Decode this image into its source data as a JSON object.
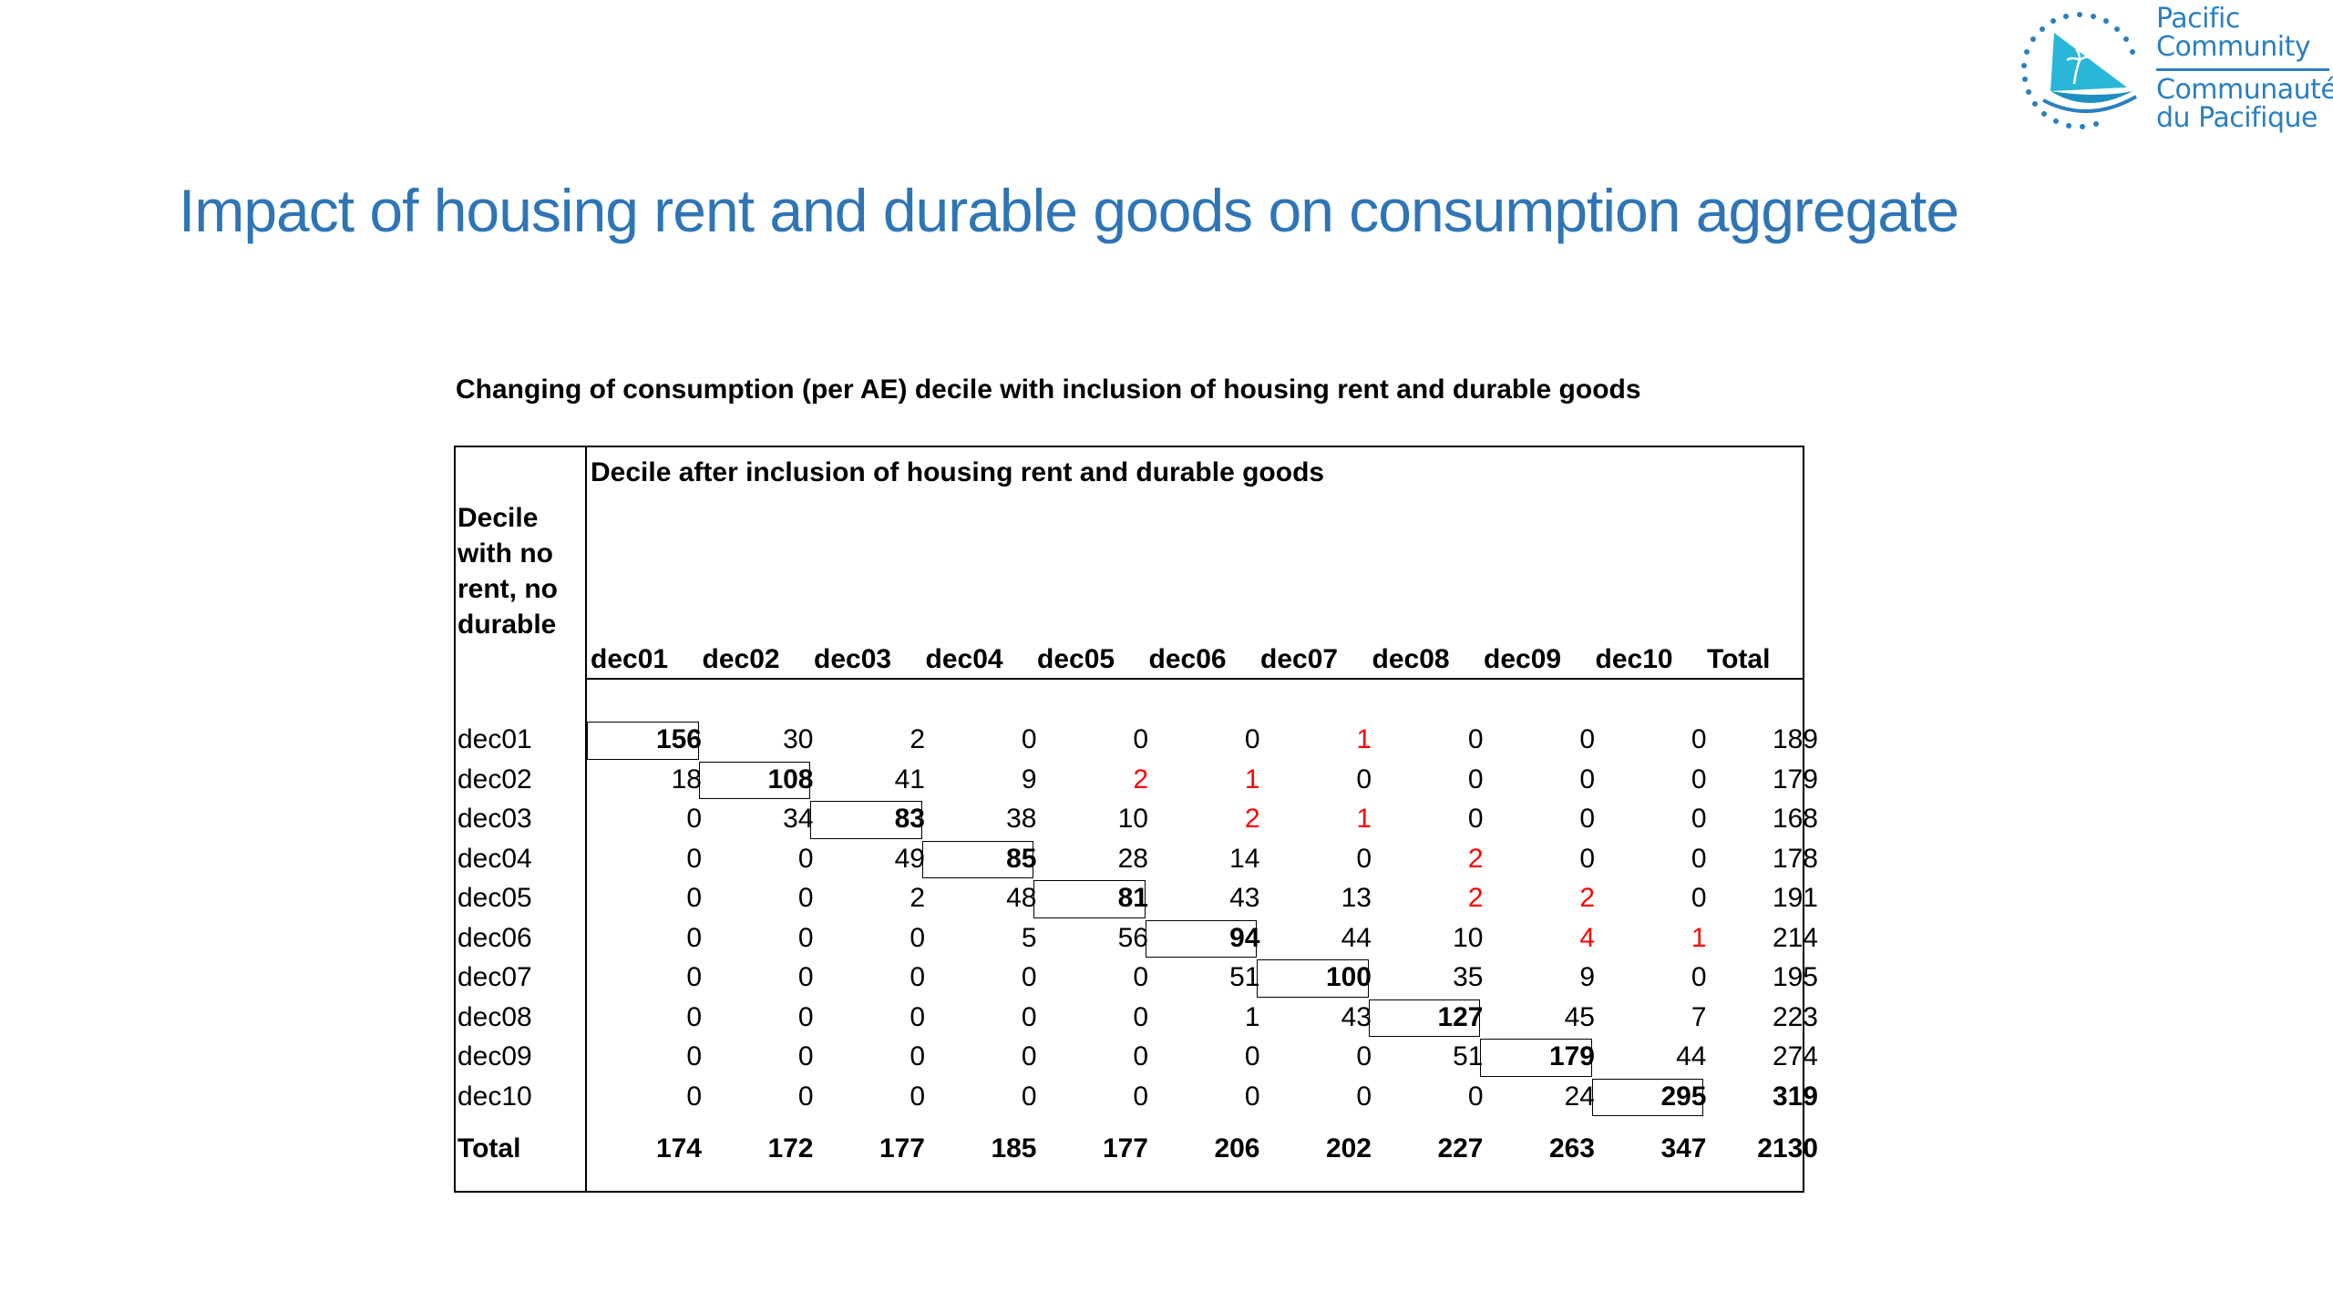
{
  "logo": {
    "line1": "Pacific",
    "line2": "Community",
    "line3": "Communauté",
    "line4": "du Pacifique",
    "brand_color": "#2a7fc1"
  },
  "slide_title": "Impact of housing rent and durable goods on consumption aggregate",
  "table": {
    "caption": "Changing of consumption (per AE) decile with inclusion of housing rent and durable goods",
    "column_header": "Decile after inclusion of housing rent and durable goods",
    "row_header": "Decile with no rent, no durable",
    "columns": [
      "dec01",
      "dec02",
      "dec03",
      "dec04",
      "dec05",
      "dec06",
      "dec07",
      "dec08",
      "dec09",
      "dec10",
      "Total"
    ],
    "rows": [
      {
        "label": "dec01",
        "values": [
          "156",
          "30",
          "2",
          "0",
          "0",
          "0",
          "1",
          "0",
          "0",
          "0",
          "189"
        ]
      },
      {
        "label": "dec02",
        "values": [
          "18",
          "108",
          "41",
          "9",
          "2",
          "1",
          "0",
          "0",
          "0",
          "0",
          "179"
        ]
      },
      {
        "label": "dec03",
        "values": [
          "0",
          "34",
          "83",
          "38",
          "10",
          "2",
          "1",
          "0",
          "0",
          "0",
          "168"
        ]
      },
      {
        "label": "dec04",
        "values": [
          "0",
          "0",
          "49",
          "85",
          "28",
          "14",
          "0",
          "2",
          "0",
          "0",
          "178"
        ]
      },
      {
        "label": "dec05",
        "values": [
          "0",
          "0",
          "2",
          "48",
          "81",
          "43",
          "13",
          "2",
          "2",
          "0",
          "191"
        ]
      },
      {
        "label": "dec06",
        "values": [
          "0",
          "0",
          "0",
          "5",
          "56",
          "94",
          "44",
          "10",
          "4",
          "1",
          "214"
        ]
      },
      {
        "label": "dec07",
        "values": [
          "0",
          "0",
          "0",
          "0",
          "0",
          "51",
          "100",
          "35",
          "9",
          "0",
          "195"
        ]
      },
      {
        "label": "dec08",
        "values": [
          "0",
          "0",
          "0",
          "0",
          "0",
          "1",
          "43",
          "127",
          "45",
          "7",
          "223"
        ]
      },
      {
        "label": "dec09",
        "values": [
          "0",
          "0",
          "0",
          "0",
          "0",
          "0",
          "0",
          "51",
          "179",
          "44",
          "274"
        ]
      },
      {
        "label": "dec10",
        "values": [
          "0",
          "0",
          "0",
          "0",
          "0",
          "0",
          "0",
          "0",
          "24",
          "295",
          "319"
        ]
      }
    ],
    "total_row": {
      "label": "Total",
      "values": [
        "174",
        "172",
        "177",
        "185",
        "177",
        "206",
        "202",
        "227",
        "263",
        "347",
        "2130"
      ]
    },
    "highlight_color": "#ff0000",
    "red_cells": [
      [
        0,
        6
      ],
      [
        1,
        4
      ],
      [
        1,
        5
      ],
      [
        2,
        5
      ],
      [
        2,
        6
      ],
      [
        3,
        7
      ],
      [
        4,
        7
      ],
      [
        4,
        8
      ],
      [
        5,
        8
      ],
      [
        5,
        9
      ]
    ]
  }
}
